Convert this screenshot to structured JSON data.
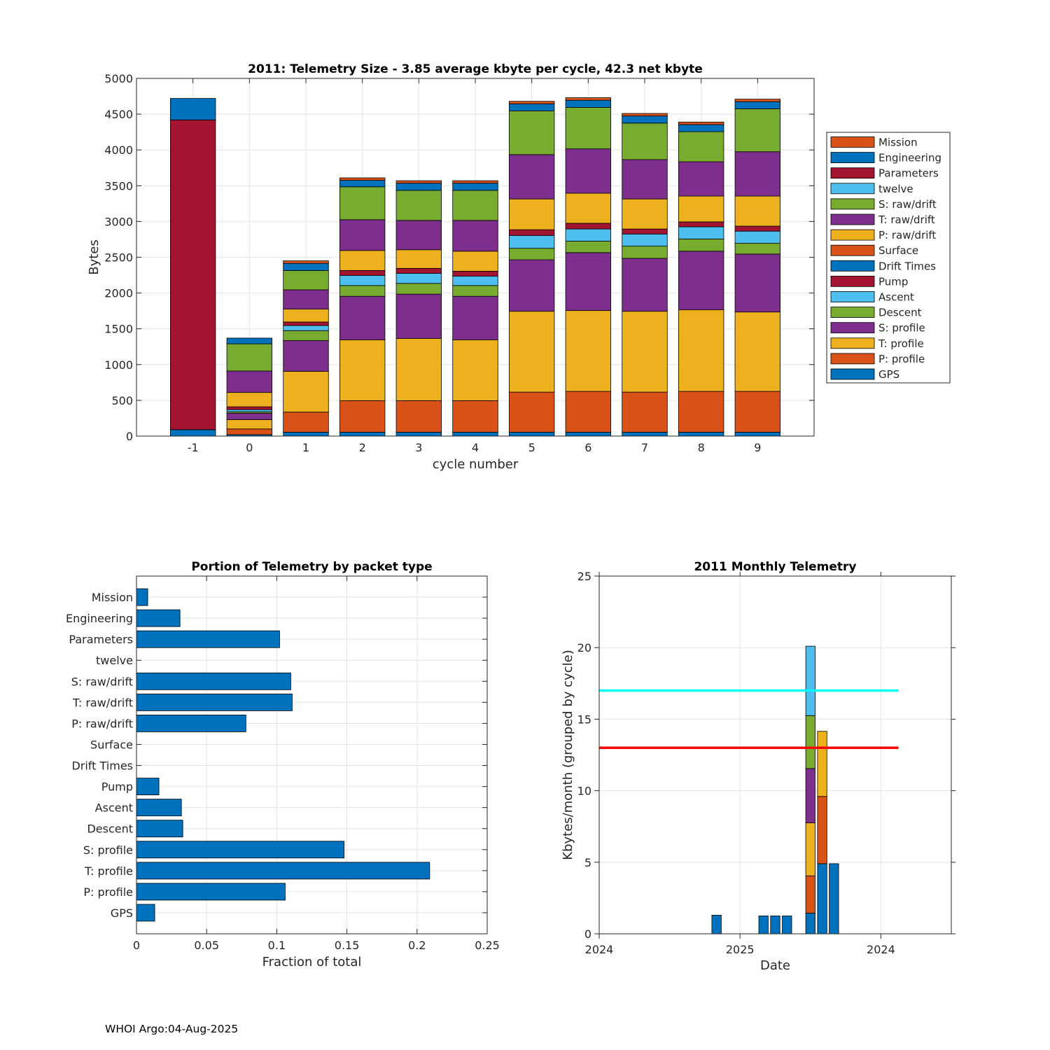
{
  "footer": "WHOI Argo:04-Aug-2025",
  "chart_data": [
    {
      "type": "bar",
      "stacked": true,
      "title": "2011: Telemetry Size - 3.85 average kbyte per cycle,   42.3 net kbyte",
      "xlabel": "cycle number",
      "ylabel": "Bytes",
      "ylim": [
        0,
        5000
      ],
      "yticks": [
        0,
        500,
        1000,
        1500,
        2000,
        2500,
        3000,
        3500,
        4000,
        4500,
        5000
      ],
      "grid": true,
      "legend_position": "right",
      "categories": [
        "-1",
        "0",
        "1",
        "2",
        "3",
        "4",
        "5",
        "6",
        "7",
        "8",
        "9"
      ],
      "series": [
        {
          "name": "GPS",
          "color": "#0072BD",
          "values": [
            90,
            20,
            55,
            55,
            55,
            55,
            55,
            55,
            55,
            55,
            55
          ]
        },
        {
          "name": "P: profile",
          "color": "#D95319",
          "values": [
            0,
            80,
            280,
            440,
            440,
            440,
            560,
            570,
            560,
            570,
            570
          ]
        },
        {
          "name": "T: profile",
          "color": "#EDB120",
          "values": [
            0,
            130,
            570,
            850,
            870,
            850,
            1130,
            1130,
            1130,
            1140,
            1110
          ]
        },
        {
          "name": "S: profile",
          "color": "#7E2F8E",
          "values": [
            0,
            90,
            430,
            610,
            620,
            610,
            720,
            810,
            740,
            820,
            810
          ]
        },
        {
          "name": "Descent",
          "color": "#77AC30",
          "values": [
            0,
            20,
            140,
            150,
            150,
            150,
            160,
            160,
            170,
            170,
            150
          ]
        },
        {
          "name": "Ascent",
          "color": "#4DBEEE",
          "values": [
            0,
            30,
            70,
            140,
            140,
            130,
            180,
            170,
            170,
            170,
            170
          ]
        },
        {
          "name": "Pump",
          "color": "#A2142F",
          "values": [
            0,
            40,
            50,
            70,
            70,
            70,
            80,
            80,
            70,
            70,
            70
          ]
        },
        {
          "name": "Drift Times",
          "color": "#0072BD",
          "values": [
            0,
            0,
            0,
            0,
            0,
            0,
            0,
            0,
            0,
            0,
            0
          ]
        },
        {
          "name": "Surface",
          "color": "#D95319",
          "values": [
            0,
            0,
            0,
            0,
            0,
            0,
            0,
            0,
            0,
            0,
            0
          ]
        },
        {
          "name": "P: raw/drift",
          "color": "#EDB120",
          "values": [
            0,
            200,
            180,
            280,
            260,
            280,
            430,
            420,
            420,
            360,
            420
          ]
        },
        {
          "name": "T: raw/drift",
          "color": "#7E2F8E",
          "values": [
            0,
            300,
            270,
            430,
            410,
            430,
            620,
            620,
            550,
            480,
            620
          ]
        },
        {
          "name": "S: raw/drift",
          "color": "#77AC30",
          "values": [
            0,
            380,
            270,
            460,
            420,
            420,
            610,
            580,
            510,
            420,
            600
          ]
        },
        {
          "name": "twelve",
          "color": "#4DBEEE",
          "values": [
            0,
            0,
            0,
            0,
            0,
            0,
            0,
            0,
            0,
            0,
            0
          ]
        },
        {
          "name": "Parameters",
          "color": "#A2142F",
          "values": [
            4330,
            0,
            0,
            0,
            0,
            0,
            0,
            0,
            0,
            0,
            0
          ]
        },
        {
          "name": "Engineering",
          "color": "#0072BD",
          "values": [
            300,
            80,
            100,
            90,
            100,
            100,
            100,
            100,
            100,
            100,
            100
          ]
        },
        {
          "name": "Mission",
          "color": "#D95319",
          "values": [
            0,
            0,
            35,
            35,
            35,
            35,
            35,
            35,
            35,
            35,
            35
          ]
        }
      ]
    },
    {
      "type": "barh",
      "title": "Portion of Telemetry by packet type",
      "xlabel": "Fraction of total",
      "xlim": [
        0,
        0.25
      ],
      "xticks": [
        0,
        0.05,
        0.1,
        0.15,
        0.2,
        0.25
      ],
      "xtick_labels": [
        "0",
        "0.05",
        "0.1",
        "0.15",
        "0.2",
        "0.25"
      ],
      "grid": true,
      "color": "#0072BD",
      "categories": [
        "GPS",
        "P: profile",
        "T: profile",
        "S: profile",
        "Descent",
        "Ascent",
        "Pump",
        "Drift Times",
        "Surface",
        "P: raw/drift",
        "T: raw/drift",
        "S: raw/drift",
        "twelve",
        "Parameters",
        "Engineering",
        "Mission"
      ],
      "values": [
        0.013,
        0.106,
        0.209,
        0.148,
        0.033,
        0.032,
        0.016,
        0,
        0,
        0.078,
        0.111,
        0.11,
        0,
        0.102,
        0.031,
        0.008
      ]
    },
    {
      "type": "bar",
      "stacked": true,
      "title": "2011 Monthly Telemetry",
      "xlabel": "Date",
      "ylabel": "Kbytes/month (grouped by cycle)",
      "ylim": [
        0,
        25
      ],
      "yticks": [
        0,
        5,
        10,
        15,
        20,
        25
      ],
      "xlim": [
        0,
        30
      ],
      "xticks": [
        0,
        12,
        24
      ],
      "xtick_labels": [
        "2024",
        "2025",
        "2024"
      ],
      "grid": true,
      "reference_lines": [
        {
          "y": 17,
          "x_range": [
            0,
            25.5
          ],
          "color": "#00FFFF"
        },
        {
          "y": 13,
          "x_range": [
            0,
            25.5
          ],
          "color": "#FF0000"
        }
      ],
      "bars": [
        {
          "x": 10,
          "segments": [
            {
              "value": 1.3,
              "color": "#0072BD"
            }
          ]
        },
        {
          "x": 14,
          "segments": [
            {
              "value": 1.25,
              "color": "#0072BD"
            }
          ]
        },
        {
          "x": 15,
          "segments": [
            {
              "value": 1.25,
              "color": "#0072BD"
            }
          ]
        },
        {
          "x": 16,
          "segments": [
            {
              "value": 1.25,
              "color": "#0072BD"
            }
          ]
        },
        {
          "x": 18,
          "segments": [
            {
              "value": 1.45,
              "color": "#0072BD"
            },
            {
              "value": 2.6,
              "color": "#D95319"
            },
            {
              "value": 3.7,
              "color": "#EDB120"
            },
            {
              "value": 3.8,
              "color": "#7E2F8E"
            },
            {
              "value": 3.7,
              "color": "#77AC30"
            },
            {
              "value": 4.85,
              "color": "#4DBEEE"
            }
          ]
        },
        {
          "x": 19,
          "segments": [
            {
              "value": 4.9,
              "color": "#0072BD"
            },
            {
              "value": 4.7,
              "color": "#D95319"
            },
            {
              "value": 4.55,
              "color": "#EDB120"
            }
          ]
        },
        {
          "x": 20,
          "segments": [
            {
              "value": 4.9,
              "color": "#0072BD"
            }
          ]
        }
      ]
    }
  ]
}
